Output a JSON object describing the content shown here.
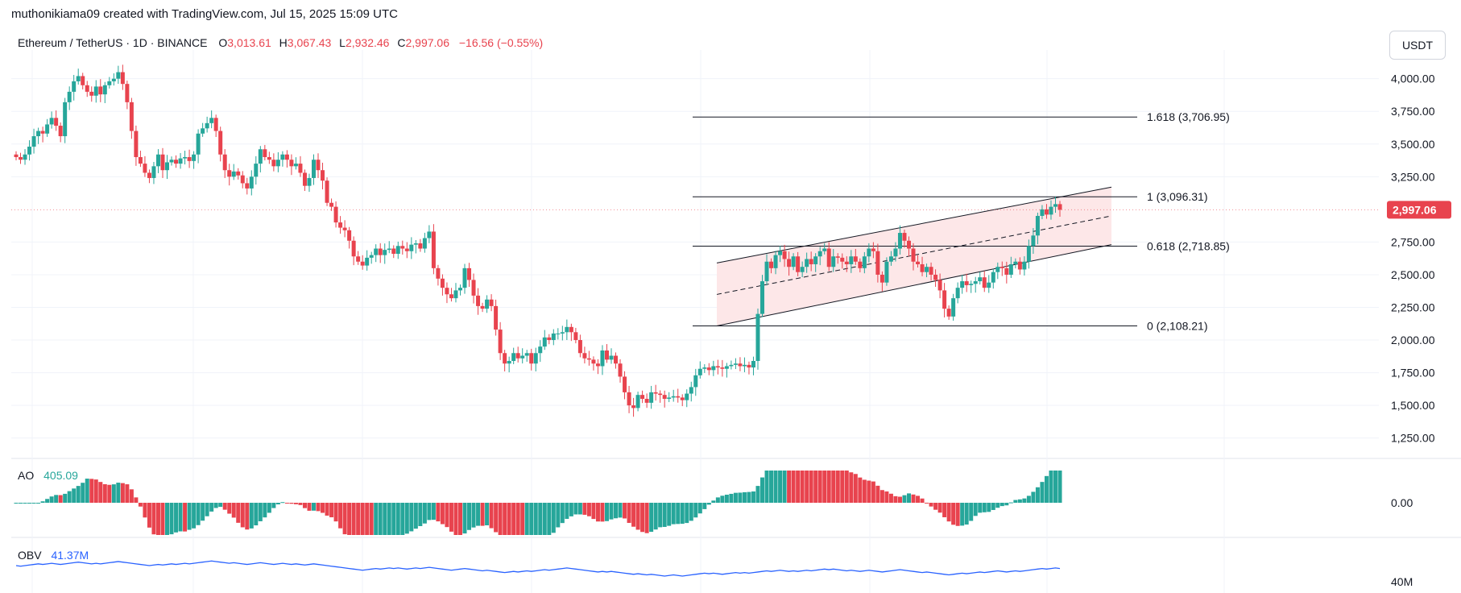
{
  "caption": "muthonikiama09 created with TradingView.com, Jul 15, 2025 15:09 UTC",
  "legend": {
    "symbol": "Ethereum / TetherUS · 1D · BINANCE",
    "o_label": "O",
    "o_value": "3,013.61",
    "h_label": "H",
    "h_value": "3,067.43",
    "l_label": "L",
    "l_value": "2,932.46",
    "c_label": "C",
    "c_value": "2,997.06",
    "change": "−16.56 (−0.55%)"
  },
  "currency_button": "USDT",
  "colors": {
    "up": "#26a69a",
    "down": "#e8434e",
    "obv": "#2962ff",
    "grid": "#f0f3fa",
    "price_tag": "#e8434e",
    "channel_fill": "#fde7e8"
  },
  "price_axis": {
    "ticks": [
      "4,000.00",
      "3,750.00",
      "3,500.00",
      "3,250.00",
      "2,750.00",
      "2,500.00",
      "2,250.00",
      "2,000.00",
      "1,750.00",
      "1,500.00",
      "1,250.00"
    ],
    "tick_values": [
      4000,
      3750,
      3500,
      3250,
      2750,
      2500,
      2250,
      2000,
      1750,
      1500,
      1250
    ],
    "current_price": "2,997.06",
    "current_value": 2997.06
  },
  "fib_levels": [
    {
      "label": "1.618 (3,706.95)",
      "value": 3706.95
    },
    {
      "label": "1 (3,096.31)",
      "value": 3096.31
    },
    {
      "label": "0.618 (2,718.85)",
      "value": 2718.85
    },
    {
      "label": "0 (2,108.21)",
      "value": 2108.21
    }
  ],
  "ao": {
    "label": "AO",
    "value": "405.09",
    "axis_tick": "0.00"
  },
  "obv": {
    "label": "OBV",
    "value": "41.37M",
    "axis_tick": "40M"
  },
  "chart_data": {
    "type": "candlestick",
    "title": "Ethereum / TetherUS · 1D · BINANCE",
    "ylim": [
      1100,
      4220
    ],
    "closes": [
      3400,
      3380,
      3420,
      3480,
      3560,
      3600,
      3580,
      3650,
      3700,
      3640,
      3560,
      3820,
      3900,
      3980,
      4020,
      3950,
      3900,
      3870,
      3940,
      3880,
      3950,
      3980,
      4000,
      4050,
      3960,
      3820,
      3600,
      3400,
      3350,
      3280,
      3240,
      3330,
      3420,
      3300,
      3360,
      3380,
      3350,
      3390,
      3400,
      3370,
      3420,
      3580,
      3620,
      3660,
      3700,
      3600,
      3420,
      3300,
      3250,
      3290,
      3260,
      3200,
      3160,
      3250,
      3350,
      3460,
      3400,
      3380,
      3330,
      3380,
      3420,
      3380,
      3330,
      3350,
      3280,
      3180,
      3240,
      3380,
      3300,
      3220,
      3050,
      3020,
      2900,
      2860,
      2840,
      2760,
      2640,
      2600,
      2570,
      2630,
      2650,
      2700,
      2650,
      2690,
      2700,
      2660,
      2720,
      2700,
      2680,
      2730,
      2740,
      2700,
      2780,
      2830,
      2550,
      2470,
      2400,
      2350,
      2320,
      2380,
      2400,
      2550,
      2460,
      2340,
      2260,
      2240,
      2310,
      2260,
      2080,
      1900,
      1820,
      1840,
      1900,
      1860,
      1880,
      1900,
      1820,
      1900,
      1950,
      2020,
      2000,
      2050,
      2050,
      2060,
      2100,
      2060,
      2000,
      1900,
      1860,
      1850,
      1820,
      1800,
      1920,
      1850,
      1880,
      1820,
      1720,
      1600,
      1500,
      1480,
      1580,
      1550,
      1520,
      1600,
      1590,
      1580,
      1550,
      1560,
      1570,
      1560,
      1540,
      1590,
      1640,
      1730,
      1780,
      1790,
      1770,
      1800,
      1790,
      1780,
      1800,
      1810,
      1820,
      1800,
      1810,
      1790,
      1840,
      2200,
      2450,
      2600,
      2550,
      2650,
      2680,
      2620,
      2560,
      2640,
      2520,
      2560,
      2620,
      2580,
      2640,
      2680,
      2700,
      2560,
      2640,
      2630,
      2600,
      2580,
      2640,
      2600,
      2550,
      2640,
      2700,
      2680,
      2500,
      2440,
      2600,
      2640,
      2700,
      2820,
      2760,
      2700,
      2600,
      2580,
      2520,
      2560,
      2500,
      2460,
      2380,
      2240,
      2180,
      2320,
      2400,
      2450,
      2420,
      2430,
      2450,
      2480,
      2400,
      2440,
      2520,
      2560,
      2550,
      2500,
      2580,
      2600,
      2540,
      2600,
      2720,
      2800,
      2950,
      3000,
      2960,
      3020,
      3040,
      2997
    ]
  }
}
